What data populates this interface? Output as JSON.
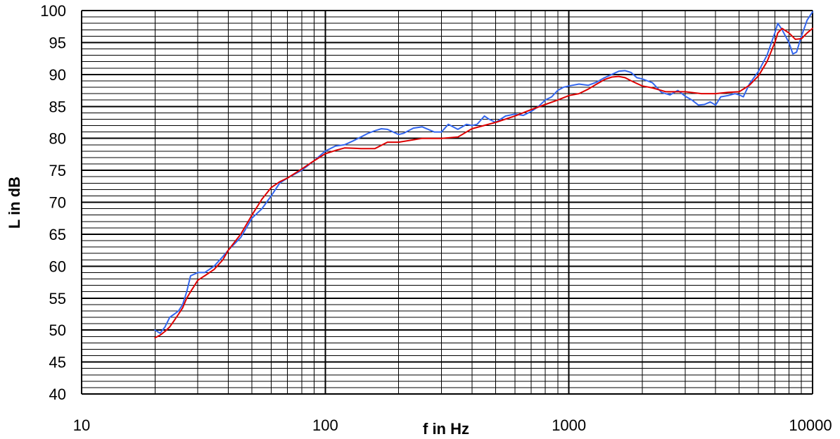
{
  "chart_data": {
    "type": "line",
    "title": "",
    "xlabel": "f in Hz",
    "ylabel": "L in dB",
    "xscale": "log",
    "xlim": [
      10,
      10000
    ],
    "ylim": [
      40,
      100
    ],
    "x_ticks": [
      10,
      100,
      1000,
      10000
    ],
    "x_tick_labels": [
      "10",
      "100",
      "1000",
      "10000"
    ],
    "y_ticks": [
      40,
      45,
      50,
      55,
      60,
      65,
      70,
      75,
      80,
      85,
      90,
      95,
      100
    ],
    "y_tick_labels": [
      "40",
      "45",
      "50",
      "55",
      "60",
      "65",
      "70",
      "75",
      "80",
      "85",
      "90",
      "95",
      "100"
    ],
    "grid": true,
    "legend": "none",
    "colors": {
      "series_blue": "#3366ee",
      "series_red": "#dd0000",
      "grid": "#000000",
      "background": "#ffffff"
    },
    "series": [
      {
        "color": "#3366ee",
        "x": [
          20,
          21,
          22,
          23,
          24,
          25,
          26,
          27,
          28,
          30,
          32,
          35,
          38,
          40,
          45,
          50,
          55,
          60,
          65,
          70,
          80,
          90,
          100,
          110,
          120,
          130,
          140,
          150,
          160,
          170,
          180,
          200,
          210,
          230,
          250,
          280,
          300,
          320,
          350,
          380,
          400,
          420,
          450,
          470,
          500,
          550,
          600,
          650,
          700,
          750,
          800,
          850,
          900,
          950,
          1000,
          1100,
          1200,
          1300,
          1400,
          1500,
          1600,
          1700,
          1800,
          1900,
          2000,
          2200,
          2400,
          2600,
          2800,
          3000,
          3200,
          3400,
          3600,
          3800,
          4000,
          4200,
          4500,
          4800,
          5000,
          5200,
          5500,
          6000,
          6500,
          7000,
          7200,
          7500,
          8000,
          8300,
          8600,
          9000,
          9500,
          10000
        ],
        "y": [
          50,
          49.5,
          50.5,
          52,
          52.5,
          53,
          54,
          56,
          58.5,
          59,
          59,
          60,
          61.5,
          62.5,
          64.5,
          67.5,
          69,
          71,
          73,
          73.8,
          75,
          76.5,
          78,
          78.8,
          79,
          79.6,
          80.2,
          80.8,
          81.2,
          81.5,
          81.4,
          80.6,
          80.8,
          81.6,
          81.8,
          81,
          81,
          82.2,
          81.4,
          82.2,
          82,
          82.2,
          83.5,
          83,
          82.5,
          83.5,
          83.8,
          83.6,
          84.2,
          85,
          86,
          86.5,
          87.5,
          88,
          88.2,
          88.5,
          88.3,
          88.8,
          89.5,
          90,
          90.5,
          90.6,
          90.3,
          89.5,
          89.3,
          88.7,
          87.2,
          86.8,
          87.5,
          86.6,
          86,
          85.2,
          85.3,
          85.7,
          85.2,
          86.5,
          86.7,
          87,
          86.8,
          86.5,
          88.5,
          90.5,
          93,
          96.5,
          98,
          97,
          95,
          93.2,
          93.5,
          96,
          98.5,
          99.8
        ]
      },
      {
        "color": "#dd0000",
        "x": [
          20,
          21,
          22,
          23,
          24,
          25,
          26,
          27,
          28,
          30,
          32,
          35,
          38,
          40,
          45,
          50,
          55,
          60,
          65,
          70,
          80,
          90,
          100,
          110,
          120,
          140,
          160,
          180,
          200,
          250,
          300,
          350,
          400,
          500,
          600,
          700,
          800,
          900,
          1000,
          1100,
          1200,
          1300,
          1400,
          1500,
          1600,
          1700,
          1800,
          1900,
          2000,
          2200,
          2500,
          3000,
          3500,
          4000,
          4500,
          5000,
          5500,
          6000,
          6500,
          7000,
          7200,
          7500,
          8000,
          8500,
          9000,
          9500,
          10000
        ],
        "y": [
          48.8,
          49.2,
          49.8,
          50.5,
          51.5,
          52.5,
          53.5,
          55,
          56,
          57.8,
          58.5,
          59.5,
          61,
          62.5,
          65,
          68,
          70.5,
          72.3,
          73.2,
          73.8,
          75.2,
          76.5,
          77.6,
          78.1,
          78.5,
          78.4,
          78.4,
          79.4,
          79.4,
          80,
          80,
          80.2,
          81.5,
          82.5,
          83.5,
          84.5,
          85.3,
          86,
          86.7,
          87,
          87.7,
          88.5,
          89.2,
          89.6,
          89.7,
          89.5,
          89,
          88.6,
          88.2,
          87.9,
          87.3,
          87.3,
          87,
          87,
          87.2,
          87.3,
          88.3,
          89.8,
          92,
          95,
          96.5,
          97.2,
          96.5,
          95.5,
          95.6,
          96.5,
          97.2
        ]
      }
    ]
  }
}
